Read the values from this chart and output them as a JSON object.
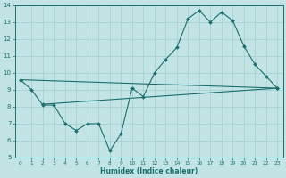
{
  "xlabel": "Humidex (Indice chaleur)",
  "xlim": [
    -0.5,
    23.5
  ],
  "ylim": [
    5,
    14
  ],
  "yticks": [
    5,
    6,
    7,
    8,
    9,
    10,
    11,
    12,
    13,
    14
  ],
  "xticks": [
    0,
    1,
    2,
    3,
    4,
    5,
    6,
    7,
    8,
    9,
    10,
    11,
    12,
    13,
    14,
    15,
    16,
    17,
    18,
    19,
    20,
    21,
    22,
    23
  ],
  "bg_color": "#c2e4e4",
  "grid_color": "#a4cece",
  "line_color": "#1a6e6e",
  "line1_x": [
    0,
    1,
    2,
    3,
    4,
    5,
    6,
    7,
    8,
    9,
    10,
    11,
    12,
    13,
    14,
    15,
    16,
    17,
    18,
    19,
    20,
    21,
    22,
    23
  ],
  "line1_y": [
    9.6,
    9.0,
    8.1,
    8.1,
    7.0,
    6.6,
    7.0,
    7.0,
    5.4,
    6.4,
    9.1,
    8.6,
    10.0,
    10.8,
    11.5,
    13.2,
    13.7,
    13.0,
    13.6,
    13.1,
    11.6,
    10.5,
    9.8,
    9.1
  ],
  "line2_x": [
    0,
    23
  ],
  "line2_y": [
    9.6,
    9.1
  ],
  "line3_x": [
    2,
    23
  ],
  "line3_y": [
    8.15,
    9.1
  ]
}
